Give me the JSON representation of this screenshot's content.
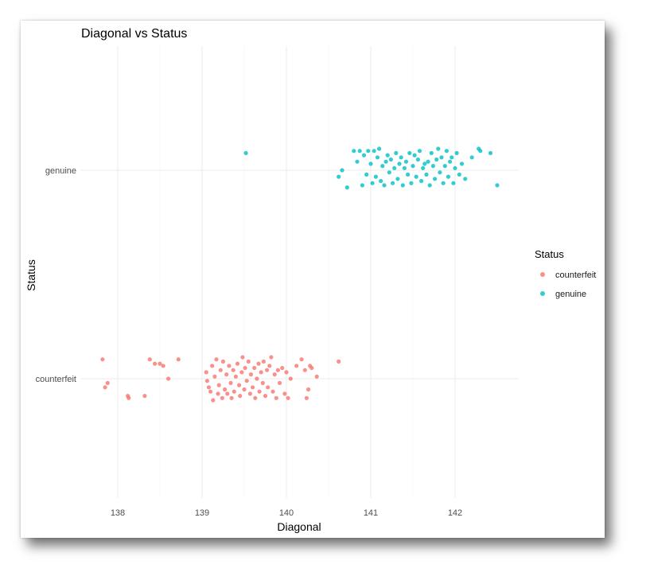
{
  "chart_data": {
    "type": "scatter",
    "title": "Diagonal vs Status",
    "xlabel": "Diagonal",
    "ylabel": "Status",
    "xlim": [
      137.6,
      142.6
    ],
    "x_ticks": [
      138,
      139,
      140,
      141,
      142
    ],
    "categories": [
      "counterfeit",
      "genuine"
    ],
    "grid": true,
    "legend": {
      "title": "Status",
      "placement": "right",
      "entries": [
        "counterfeit",
        "genuine"
      ]
    },
    "series": [
      {
        "name": "counterfeit",
        "color": "#F8766D",
        "points": [
          [
            137.82,
            0.09
          ],
          [
            137.85,
            -0.04
          ],
          [
            137.88,
            -0.02
          ],
          [
            138.12,
            -0.08
          ],
          [
            138.13,
            -0.09
          ],
          [
            138.32,
            -0.08
          ],
          [
            138.38,
            0.09
          ],
          [
            138.44,
            0.07
          ],
          [
            138.5,
            0.07
          ],
          [
            138.54,
            0.06
          ],
          [
            138.6,
            0.0
          ],
          [
            138.72,
            0.09
          ],
          [
            139.05,
            0.03
          ],
          [
            139.06,
            -0.01
          ],
          [
            139.08,
            -0.04
          ],
          [
            139.1,
            -0.06
          ],
          [
            139.12,
            0.06
          ],
          [
            139.13,
            -0.1
          ],
          [
            139.15,
            0.01
          ],
          [
            139.17,
            0.09
          ],
          [
            139.19,
            -0.07
          ],
          [
            139.2,
            -0.03
          ],
          [
            139.22,
            0.04
          ],
          [
            139.24,
            -0.09
          ],
          [
            139.25,
            0.08
          ],
          [
            139.27,
            -0.05
          ],
          [
            139.29,
            0.02
          ],
          [
            139.3,
            -0.07
          ],
          [
            139.32,
            0.06
          ],
          [
            139.34,
            -0.02
          ],
          [
            139.35,
            -0.09
          ],
          [
            139.37,
            0.04
          ],
          [
            139.38,
            -0.06
          ],
          [
            139.4,
            0.01
          ],
          [
            139.42,
            0.07
          ],
          [
            139.44,
            -0.03
          ],
          [
            139.45,
            -0.08
          ],
          [
            139.47,
            0.03
          ],
          [
            139.48,
            0.1
          ],
          [
            139.5,
            -0.05
          ],
          [
            139.51,
            0.05
          ],
          [
            139.53,
            -0.01
          ],
          [
            139.55,
            0.08
          ],
          [
            139.57,
            -0.07
          ],
          [
            139.58,
            0.02
          ],
          [
            139.6,
            -0.04
          ],
          [
            139.62,
            0.05
          ],
          [
            139.63,
            -0.09
          ],
          [
            139.65,
            0.0
          ],
          [
            139.67,
            0.07
          ],
          [
            139.68,
            -0.06
          ],
          [
            139.7,
            0.03
          ],
          [
            139.72,
            -0.02
          ],
          [
            139.73,
            0.08
          ],
          [
            139.75,
            -0.08
          ],
          [
            139.77,
            0.04
          ],
          [
            139.78,
            -0.04
          ],
          [
            139.8,
            0.06
          ],
          [
            139.82,
            0.1
          ],
          [
            139.84,
            -0.06
          ],
          [
            139.86,
            0.02
          ],
          [
            139.88,
            -0.09
          ],
          [
            139.9,
            0.04
          ],
          [
            139.92,
            -0.02
          ],
          [
            139.95,
            0.05
          ],
          [
            139.98,
            -0.07
          ],
          [
            140.0,
            0.03
          ],
          [
            140.02,
            -0.09
          ],
          [
            140.05,
            0.0
          ],
          [
            140.12,
            0.06
          ],
          [
            140.18,
            0.09
          ],
          [
            140.22,
            0.04
          ],
          [
            140.24,
            -0.09
          ],
          [
            140.26,
            -0.05
          ],
          [
            140.28,
            0.06
          ],
          [
            140.3,
            0.05
          ],
          [
            140.36,
            0.01
          ],
          [
            140.62,
            0.08
          ]
        ]
      },
      {
        "name": "genuine",
        "color": "#00BFC4",
        "points": [
          [
            139.52,
            0.08
          ],
          [
            140.62,
            -0.03
          ],
          [
            140.66,
            0.0
          ],
          [
            140.72,
            -0.08
          ],
          [
            140.8,
            0.09
          ],
          [
            140.84,
            0.04
          ],
          [
            140.87,
            0.09
          ],
          [
            140.9,
            -0.07
          ],
          [
            140.92,
            0.07
          ],
          [
            140.95,
            -0.02
          ],
          [
            140.97,
            0.09
          ],
          [
            141.0,
            0.03
          ],
          [
            141.02,
            -0.06
          ],
          [
            141.04,
            0.09
          ],
          [
            141.06,
            -0.03
          ],
          [
            141.08,
            0.06
          ],
          [
            141.1,
            0.1
          ],
          [
            141.12,
            -0.05
          ],
          [
            141.14,
            0.02
          ],
          [
            141.16,
            -0.07
          ],
          [
            141.18,
            0.04
          ],
          [
            141.2,
            0.07
          ],
          [
            141.22,
            -0.01
          ],
          [
            141.24,
            0.05
          ],
          [
            141.26,
            -0.06
          ],
          [
            141.28,
            0.01
          ],
          [
            141.3,
            0.08
          ],
          [
            141.32,
            -0.04
          ],
          [
            141.34,
            0.03
          ],
          [
            141.36,
            0.06
          ],
          [
            141.38,
            -0.07
          ],
          [
            141.4,
            0.01
          ],
          [
            141.42,
            0.04
          ],
          [
            141.44,
            -0.02
          ],
          [
            141.46,
            0.08
          ],
          [
            141.48,
            -0.06
          ],
          [
            141.5,
            0.02
          ],
          [
            141.52,
            0.07
          ],
          [
            141.54,
            -0.03
          ],
          [
            141.56,
            0.05
          ],
          [
            141.58,
            0.09
          ],
          [
            141.6,
            -0.05
          ],
          [
            141.62,
            0.01
          ],
          [
            141.64,
            0.03
          ],
          [
            141.66,
            -0.02
          ],
          [
            141.68,
            0.04
          ],
          [
            141.7,
            -0.07
          ],
          [
            141.72,
            0.08
          ],
          [
            141.74,
            0.02
          ],
          [
            141.76,
            -0.04
          ],
          [
            141.78,
            0.05
          ],
          [
            141.8,
            0.1
          ],
          [
            141.82,
            -0.01
          ],
          [
            141.84,
            0.06
          ],
          [
            141.86,
            -0.06
          ],
          [
            141.88,
            0.02
          ],
          [
            141.9,
            0.09
          ],
          [
            141.92,
            -0.03
          ],
          [
            141.94,
            0.04
          ],
          [
            141.96,
            0.06
          ],
          [
            141.98,
            -0.06
          ],
          [
            142.0,
            0.01
          ],
          [
            142.02,
            0.08
          ],
          [
            142.05,
            -0.02
          ],
          [
            142.08,
            0.03
          ],
          [
            142.12,
            -0.04
          ],
          [
            142.2,
            0.06
          ],
          [
            142.28,
            0.1
          ],
          [
            142.3,
            0.09
          ],
          [
            142.42,
            0.08
          ],
          [
            142.5,
            -0.07
          ]
        ]
      }
    ]
  }
}
